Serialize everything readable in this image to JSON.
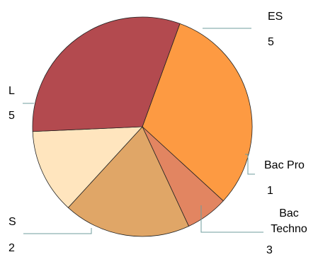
{
  "chart_data": {
    "type": "pie",
    "slices": [
      {
        "label": "ES",
        "value": 5,
        "color": "#fd9a42"
      },
      {
        "label": "Bac Pro",
        "value": 1,
        "color": "#e28561"
      },
      {
        "label": "Bac Techno",
        "value": 3,
        "color": "#e0a667"
      },
      {
        "label": "S",
        "value": 2,
        "color": "#ffe5be"
      },
      {
        "label": "L",
        "value": 5,
        "color": "#b34a4f"
      }
    ],
    "value_labels": true,
    "legend": "none"
  }
}
